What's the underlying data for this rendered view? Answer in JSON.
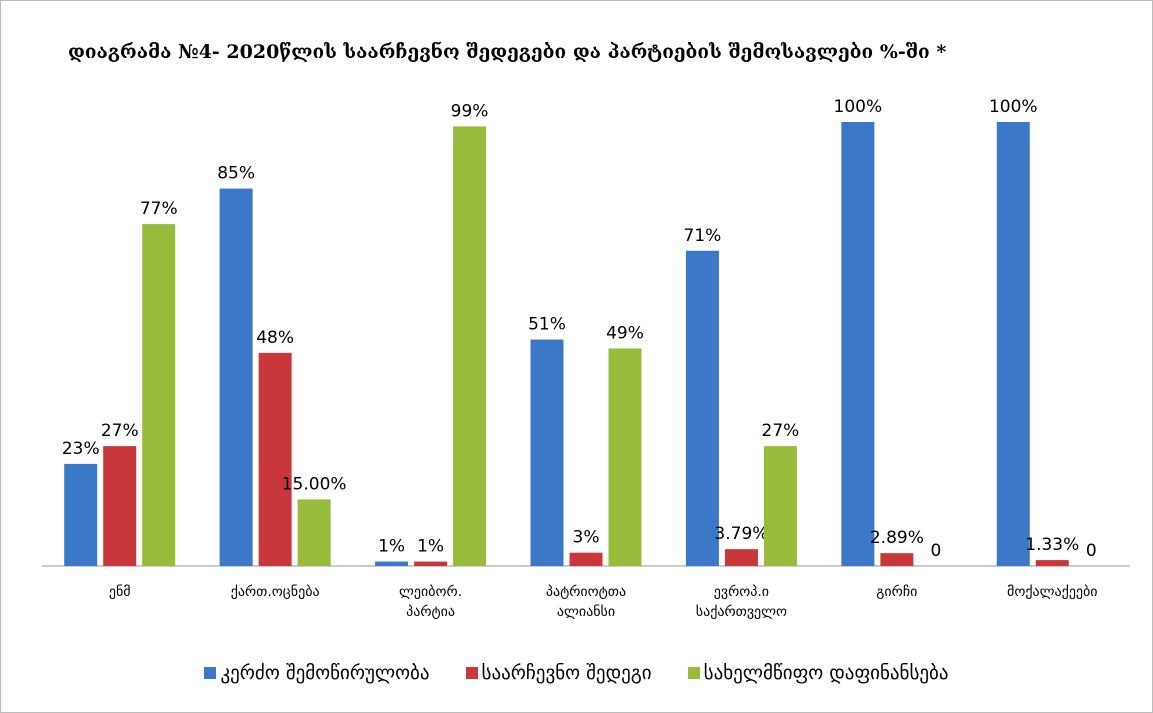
{
  "chart_data": {
    "type": "bar",
    "title": "დიაგრამა №4- 2020წლის საარჩევნო შედეგები და პარტიების შემოსავლები %-ში *",
    "categories": [
      "ენმ",
      "ქართ.ოცნება",
      "ლეიბორ. პარტია",
      "პატრიოტთა ალიანსი",
      "ევროპ.ი საქართველო",
      "გირჩი",
      "მოქალაქეები"
    ],
    "series": [
      {
        "name": "კერძო შემოწირულობა",
        "color": "#3b78c8",
        "values": [
          23,
          85,
          1,
          51,
          71,
          100,
          100
        ],
        "value_labels": [
          "23%",
          "85%",
          "1%",
          "51%",
          "71%",
          "100%",
          "100%"
        ]
      },
      {
        "name": "საარჩევნო შედეგი",
        "color": "#c8383a",
        "values": [
          27,
          48,
          1,
          3,
          3.79,
          2.89,
          1.33
        ],
        "value_labels": [
          "27%",
          "48%",
          "1%",
          "3%",
          "3.79%",
          "2.89%",
          "1.33%"
        ]
      },
      {
        "name": "სახელმწიფო დაფინანსება",
        "color": "#98bb3c",
        "values": [
          77,
          15,
          99,
          49,
          27,
          0,
          0
        ],
        "value_labels": [
          "77%",
          "15.00%",
          "99%",
          "49%",
          "27%",
          "0",
          "0"
        ]
      }
    ],
    "ylim": [
      0,
      100
    ]
  }
}
